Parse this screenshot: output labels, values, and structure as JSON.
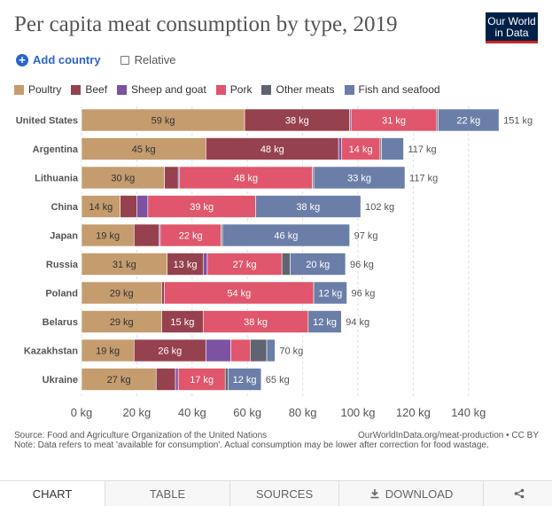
{
  "title": "Per capita meat consumption by type, 2019",
  "logo": {
    "line1": "Our World",
    "line2": "in Data"
  },
  "controls": {
    "add_country": "Add country",
    "relative": "Relative"
  },
  "colors": {
    "Poultry": "#c49c6e",
    "Beef": "#96414e",
    "Sheep and goat": "#7c52a3",
    "Pork": "#e0566c",
    "Other meats": "#5f6470",
    "Fish and seafood": "#6a7ea8"
  },
  "chart_data": {
    "type": "bar",
    "orientation": "horizontal",
    "stacked": true,
    "unit": "kg",
    "series_names": [
      "Poultry",
      "Beef",
      "Sheep and goat",
      "Pork",
      "Other meats",
      "Fish and seafood"
    ],
    "countries": [
      {
        "name": "United States",
        "total": 151,
        "values": [
          59,
          38,
          0.5,
          31,
          0.5,
          22
        ],
        "labels": [
          "59 kg",
          "38 kg",
          "",
          "31 kg",
          "",
          "22 kg"
        ],
        "total_label": "151 kg"
      },
      {
        "name": "Argentina",
        "total": 117,
        "values": [
          45,
          48,
          1,
          14,
          0.5,
          8
        ],
        "labels": [
          "45 kg",
          "48 kg",
          "",
          "14 kg",
          "",
          ""
        ],
        "total_label": "117 kg"
      },
      {
        "name": "Lithuania",
        "total": 117,
        "values": [
          30,
          5,
          0.5,
          48,
          0.5,
          33
        ],
        "labels": [
          "30 kg",
          "",
          "",
          "48 kg",
          "",
          "33 kg"
        ],
        "total_label": "117 kg"
      },
      {
        "name": "China",
        "total": 102,
        "values": [
          14,
          6,
          4,
          39,
          0,
          38
        ],
        "labels": [
          "14 kg",
          "",
          "",
          "39 kg",
          "",
          "38 kg"
        ],
        "total_label": "102 kg"
      },
      {
        "name": "Japan",
        "total": 97,
        "values": [
          19,
          9,
          0.5,
          22,
          0.5,
          46
        ],
        "labels": [
          "19 kg",
          "",
          "",
          "22 kg",
          "",
          "46 kg"
        ],
        "total_label": "97 kg"
      },
      {
        "name": "Russia",
        "total": 96,
        "values": [
          31,
          13,
          1.5,
          27,
          3,
          20
        ],
        "labels": [
          "31 kg",
          "13 kg",
          "",
          "27 kg",
          "",
          "20 kg"
        ],
        "total_label": "96 kg"
      },
      {
        "name": "Poland",
        "total": 96,
        "values": [
          29,
          1,
          0,
          54,
          0,
          12
        ],
        "labels": [
          "29 kg",
          "",
          "",
          "54 kg",
          "",
          "12 kg"
        ],
        "total_label": "96 kg"
      },
      {
        "name": "Belarus",
        "total": 94,
        "values": [
          29,
          15,
          0,
          38,
          0,
          12
        ],
        "labels": [
          "29 kg",
          "15 kg",
          "",
          "38 kg",
          "",
          "12 kg"
        ],
        "total_label": "94 kg"
      },
      {
        "name": "Kazakhstan",
        "total": 70,
        "values": [
          19,
          26,
          9,
          7,
          6,
          3
        ],
        "labels": [
          "19 kg",
          "26 kg",
          "",
          "",
          "",
          ""
        ],
        "total_label": "70 kg"
      },
      {
        "name": "Ukraine",
        "total": 65,
        "values": [
          27,
          7,
          1,
          17,
          1,
          12
        ],
        "labels": [
          "27 kg",
          "",
          "",
          "17 kg",
          "",
          "12 kg"
        ],
        "total_label": "65 kg"
      }
    ],
    "x_ticks": [
      0,
      20,
      40,
      60,
      80,
      100,
      120,
      140
    ],
    "x_tick_labels": [
      "0 kg",
      "20 kg",
      "40 kg",
      "60 kg",
      "80 kg",
      "100 kg",
      "120 kg",
      "140 kg"
    ],
    "xlim": [
      0,
      151
    ],
    "legend_position": "top"
  },
  "footer": {
    "source": "Source: Food and Agriculture Organization of the United Nations",
    "url": "OurWorldInData.org/meat-production • CC BY",
    "note": "Note: Data refers to meat 'available for consumption'. Actual consumption may be lower after correction for food wastage."
  },
  "tabs": {
    "chart": "CHART",
    "table": "TABLE",
    "sources": "SOURCES",
    "download": "DOWNLOAD"
  }
}
